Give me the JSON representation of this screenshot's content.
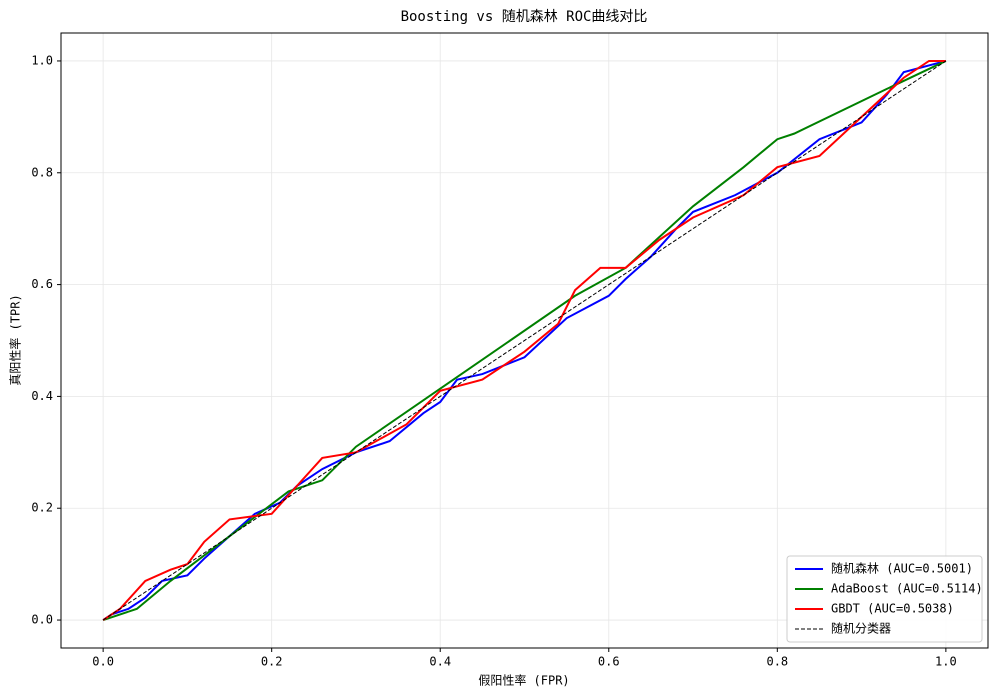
{
  "chart_data": {
    "type": "line",
    "title": "Boosting vs 随机森林 ROC曲线对比",
    "xlabel": "假阳性率 (FPR)",
    "ylabel": "真阳性率 (TPR)",
    "xlim": [
      -0.05,
      1.05
    ],
    "ylim": [
      -0.05,
      1.05
    ],
    "xticks": [
      {
        "value": 0,
        "label": "0.0"
      },
      0.2,
      0.4,
      0.6,
      0.8,
      {
        "value": 1,
        "label": "1.0"
      }
    ],
    "yticks": [
      {
        "value": 0,
        "label": "0.0"
      },
      0.2,
      0.4,
      0.6,
      0.8,
      {
        "value": 1,
        "label": "1.0"
      }
    ],
    "grid": true,
    "legend": "lower right",
    "series": [
      {
        "name": "随机森林 (AUC=0.5001)",
        "color": "#0000ff",
        "linestyle": "solid",
        "x": [
          0,
          0.01,
          0.03,
          0.05,
          0.07,
          0.1,
          0.12,
          0.15,
          0.18,
          0.21,
          0.23,
          0.26,
          0.3,
          0.34,
          0.38,
          0.4,
          0.42,
          0.45,
          0.5,
          0.55,
          0.6,
          0.62,
          0.65,
          0.68,
          0.7,
          0.75,
          0.8,
          0.85,
          0.9,
          0.93,
          0.95,
          1
        ],
        "values": [
          0,
          0.01,
          0.02,
          0.04,
          0.07,
          0.08,
          0.11,
          0.15,
          0.19,
          0.21,
          0.24,
          0.27,
          0.3,
          0.32,
          0.37,
          0.39,
          0.43,
          0.44,
          0.47,
          0.54,
          0.58,
          0.61,
          0.65,
          0.7,
          0.73,
          0.76,
          0.8,
          0.86,
          0.89,
          0.94,
          0.98,
          1
        ]
      },
      {
        "name": "AdaBoost (AUC=0.5114)",
        "color": "#008000",
        "linestyle": "solid",
        "x": [
          0,
          0.04,
          0.08,
          0.22,
          0.26,
          0.3,
          0.56,
          0.62,
          0.7,
          0.76,
          0.8,
          0.82,
          0.93,
          1
        ],
        "values": [
          0,
          0.02,
          0.07,
          0.23,
          0.25,
          0.31,
          0.58,
          0.63,
          0.74,
          0.81,
          0.86,
          0.87,
          0.95,
          1
        ]
      },
      {
        "name": "GBDT (AUC=0.5038)",
        "color": "#ff0000",
        "linestyle": "solid",
        "x": [
          0,
          0.02,
          0.05,
          0.08,
          0.1,
          0.12,
          0.15,
          0.2,
          0.23,
          0.26,
          0.3,
          0.36,
          0.4,
          0.45,
          0.5,
          0.54,
          0.56,
          0.59,
          0.62,
          0.66,
          0.7,
          0.76,
          0.8,
          0.85,
          0.9,
          0.95,
          0.98,
          1
        ],
        "values": [
          0,
          0.02,
          0.07,
          0.09,
          0.1,
          0.14,
          0.18,
          0.19,
          0.24,
          0.29,
          0.3,
          0.35,
          0.41,
          0.43,
          0.48,
          0.53,
          0.59,
          0.63,
          0.63,
          0.68,
          0.72,
          0.76,
          0.81,
          0.83,
          0.9,
          0.97,
          1,
          1
        ]
      },
      {
        "name": "随机分类器",
        "color": "#000000",
        "linestyle": "dashed",
        "x": [
          0,
          1
        ],
        "values": [
          0,
          1
        ]
      }
    ]
  }
}
